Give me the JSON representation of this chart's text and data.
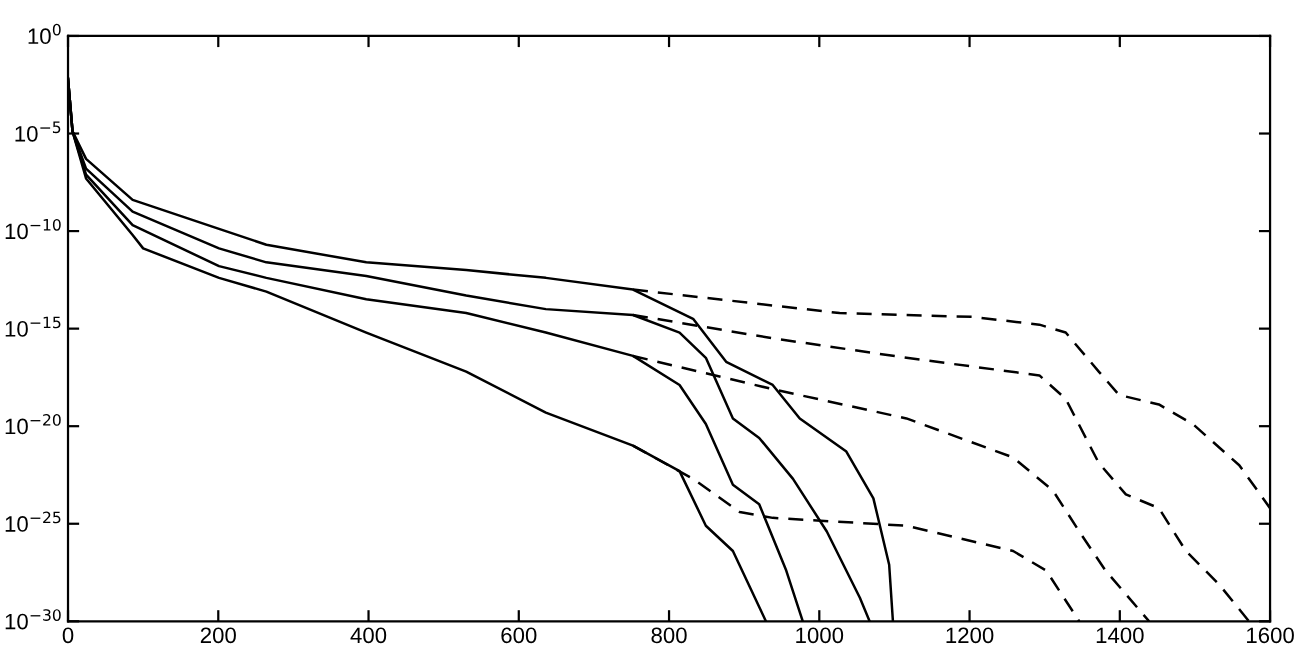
{
  "chart_data": {
    "type": "line",
    "log": "y",
    "grid": false,
    "marker": "none",
    "xlim": [
      0,
      1600
    ],
    "xticks": [
      0,
      200,
      400,
      600,
      800,
      1000,
      1200,
      1400,
      1600
    ],
    "ylim": [
      1e-30,
      1
    ],
    "yticks": [
      {
        "value": 1e-30,
        "label": "10$^{−30}$"
      },
      {
        "value": 1e-25,
        "label": "10$^{−25}$"
      },
      {
        "value": 1e-20,
        "label": "10$^{−20}$"
      },
      {
        "value": 1e-15,
        "label": "10$^{−15}$"
      },
      {
        "value": 1e-10,
        "label": "10$^{−10}$"
      },
      {
        "value": 1e-05,
        "label": "10$^{−5}$"
      },
      {
        "value": 1,
        "label": "10$^{0}$"
      }
    ],
    "series": [
      {
        "color": "#000000",
        "line_style": "solid",
        "x": [
          0,
          6,
          24,
          86,
          201,
          264,
          397,
          530,
          636,
          752,
          832,
          876,
          938,
          974,
          1036,
          1072,
          1093,
          1098
        ],
        "values": [
          0.0063,
          1.3e-05,
          5e-07,
          4e-09,
          1.3e-10,
          2e-11,
          2.5e-12,
          1e-12,
          4e-13,
          1e-13,
          3.2e-15,
          2e-17,
          1.3e-18,
          2.5e-20,
          5e-22,
          2e-24,
          7.9e-28,
          1e-30
        ]
      },
      {
        "color": "#000000",
        "line_style": "solid",
        "x": [
          0,
          6,
          24,
          86,
          201,
          264,
          397,
          530,
          636,
          752,
          814,
          849,
          885,
          920,
          965,
          1010,
          1054,
          1067
        ],
        "values": [
          0.0063,
          1.3e-05,
          1.6e-07,
          1e-09,
          1.3e-11,
          2.5e-12,
          5e-13,
          5e-14,
          1e-14,
          5e-15,
          6.3e-16,
          3.2e-17,
          2.5e-20,
          2.5e-21,
          2e-23,
          4e-26,
          1.6e-29,
          1e-30
        ]
      },
      {
        "color": "#000000",
        "line_style": "solid",
        "x": [
          0,
          6,
          24,
          86,
          201,
          264,
          397,
          530,
          636,
          752,
          814,
          849,
          885,
          920,
          956,
          978
        ],
        "values": [
          0.0063,
          1.3e-05,
          7.9e-08,
          2e-10,
          1.6e-12,
          4e-13,
          3.2e-14,
          6.3e-15,
          6.3e-16,
          4e-17,
          1.3e-18,
          1.3e-20,
          1e-23,
          1e-24,
          4e-28,
          1e-30
        ]
      },
      {
        "color": "#000000",
        "line_style": "solid",
        "x": [
          0,
          6,
          24,
          86,
          100,
          201,
          264,
          397,
          530,
          636,
          752,
          814,
          849,
          885,
          929
        ],
        "values": [
          0.0063,
          1.3e-05,
          5e-08,
          6.3e-11,
          1.3e-11,
          4e-13,
          7.9e-14,
          6.3e-16,
          6.3e-18,
          5e-20,
          1e-21,
          5e-23,
          7.9e-26,
          4e-27,
          1e-30
        ]
      },
      {
        "color": "#000000",
        "line_style": "dashed",
        "x": [
          752,
          1027,
          1204,
          1293,
          1328,
          1372,
          1399,
          1452,
          1497,
          1559,
          1600
        ],
        "values": [
          1e-13,
          6.3e-15,
          4e-15,
          1.6e-15,
          6.3e-16,
          6.3e-18,
          4e-19,
          1.3e-19,
          1.3e-20,
          1e-22,
          6.3e-25
        ]
      },
      {
        "color": "#000000",
        "line_style": "dashed",
        "x": [
          752,
          938,
          1116,
          1293,
          1328,
          1372,
          1408,
          1452,
          1488,
          1532,
          1572
        ],
        "values": [
          5e-15,
          3.2e-16,
          3.2e-17,
          4e-18,
          2.5e-19,
          1.3e-22,
          3.2e-24,
          6.3e-25,
          4e-27,
          7.9e-29,
          1e-30
        ]
      },
      {
        "color": "#000000",
        "line_style": "dashed",
        "x": [
          752,
          938,
          1116,
          1258,
          1311,
          1346,
          1381,
          1439
        ],
        "values": [
          4e-17,
          7.9e-19,
          2.5e-20,
          2.5e-22,
          5e-24,
          4e-26,
          4e-28,
          1e-30
        ]
      },
      {
        "color": "#000000",
        "line_style": "dashed",
        "x": [
          752,
          832,
          894,
          938,
          1116,
          1258,
          1302,
          1346
        ],
        "values": [
          1e-21,
          2e-23,
          4e-25,
          2e-25,
          7.9e-26,
          4e-27,
          4e-28,
          1e-30
        ]
      }
    ]
  }
}
